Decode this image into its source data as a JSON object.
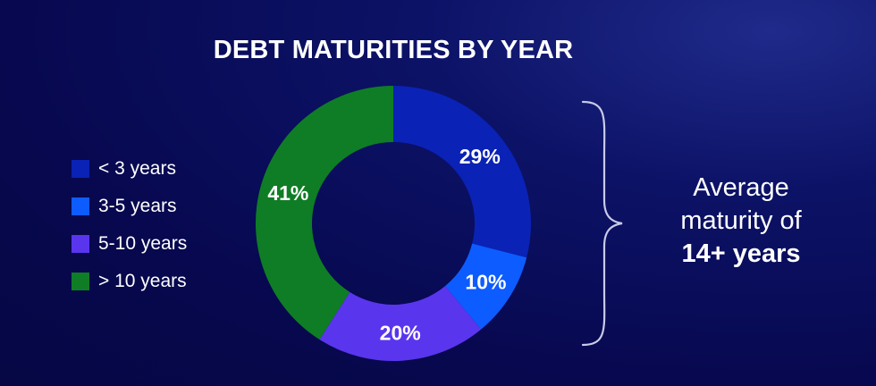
{
  "title": "DEBT MATURITIES BY YEAR",
  "legend": [
    {
      "label": "< 3 years",
      "color": "#0a22b5"
    },
    {
      "label": "3-5 years",
      "color": "#0d5cff"
    },
    {
      "label": "5-10 years",
      "color": "#5a35ee"
    },
    {
      "label": "> 10 years",
      "color": "#0f7d25"
    }
  ],
  "callout": {
    "line1": "Average",
    "line2": "maturity of",
    "line3": "14+ years"
  },
  "chart_data": {
    "type": "pie",
    "donut": true,
    "title": "DEBT MATURITIES BY YEAR",
    "categories": [
      "< 3 years",
      "3-5 years",
      "5-10 years",
      "> 10 years"
    ],
    "values": [
      29,
      10,
      20,
      41
    ],
    "labels": [
      "29%",
      "10%",
      "20%",
      "41%"
    ],
    "colors": [
      "#0a22b5",
      "#0d5cff",
      "#5a35ee",
      "#0f7d25"
    ],
    "legend_position": "left"
  }
}
